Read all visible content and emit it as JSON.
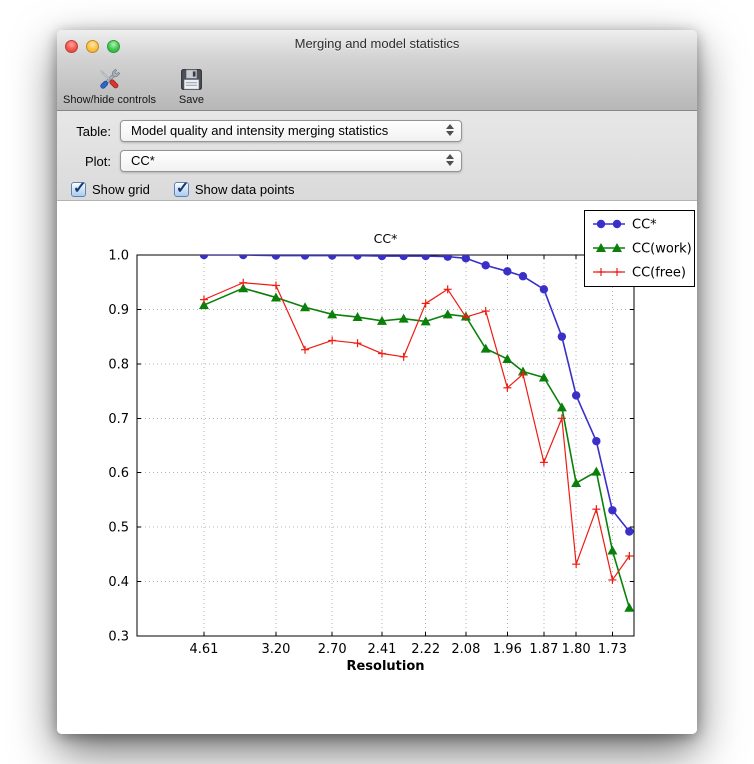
{
  "window": {
    "title": "Merging and model statistics",
    "toolbar": {
      "items": [
        {
          "label": "Show/hide controls",
          "icon": "tools-icon"
        },
        {
          "label": "Save",
          "icon": "save-icon"
        }
      ]
    },
    "controls": {
      "table": {
        "label": "Table:",
        "value": "Model quality and intensity merging statistics"
      },
      "plot": {
        "label": "Plot:",
        "value": "CC*"
      },
      "show_grid": {
        "label": "Show grid",
        "checked": true
      },
      "show_data_points": {
        "label": "Show data points",
        "checked": true
      }
    }
  },
  "chart_data": {
    "type": "line",
    "title": "CC*",
    "xlabel": "Resolution",
    "ylabel": "",
    "grid": true,
    "legend_position": "upper right",
    "ylim": [
      0.3,
      1.0
    ],
    "ytick_values": [
      1.0,
      0.9,
      0.8,
      0.7,
      0.6,
      0.5,
      0.4,
      0.3
    ],
    "ytick_labels": [
      "1.0",
      "0.9",
      "0.8",
      "0.7",
      "0.6",
      "0.5",
      "0.4",
      "0.3"
    ],
    "x_scale": "linear in 1/d^2 (resolution in Angstrom)",
    "x_resolution_angstrom": [
      4.61,
      3.66,
      3.2,
      2.91,
      2.7,
      2.54,
      2.41,
      2.31,
      2.22,
      2.14,
      2.08,
      2.02,
      1.96,
      1.92,
      1.87,
      1.83,
      1.8,
      1.76,
      1.73,
      1.7
    ],
    "xtick_bin_indices": [
      0,
      2,
      4,
      6,
      8,
      10,
      12,
      14,
      16,
      18
    ],
    "xtick_labels": [
      "4.61",
      "3.20",
      "2.70",
      "2.41",
      "2.22",
      "2.08",
      "1.96",
      "1.87",
      "1.80",
      "1.73"
    ],
    "series": [
      {
        "name": "CC*",
        "color": "#3a2fc9",
        "marker": "circle",
        "values": [
          1.0,
          1.0,
          0.999,
          0.999,
          0.999,
          0.999,
          0.998,
          0.998,
          0.998,
          0.997,
          0.994,
          0.981,
          0.97,
          0.961,
          0.937,
          0.85,
          0.742,
          0.658,
          0.531,
          0.492
        ]
      },
      {
        "name": "CC(work)",
        "color": "#0a800a",
        "marker": "triangle-up",
        "values": [
          0.908,
          0.939,
          0.922,
          0.904,
          0.891,
          0.886,
          0.879,
          0.883,
          0.878,
          0.891,
          0.887,
          0.828,
          0.809,
          0.786,
          0.775,
          0.72,
          0.581,
          0.602,
          0.457,
          0.352
        ]
      },
      {
        "name": "CC(free)",
        "color": "#ee1c12",
        "marker": "plus",
        "values": [
          0.918,
          0.949,
          0.944,
          0.826,
          0.843,
          0.838,
          0.819,
          0.813,
          0.911,
          0.937,
          0.886,
          0.897,
          0.756,
          0.781,
          0.619,
          0.7,
          0.432,
          0.533,
          0.403,
          0.447
        ]
      }
    ]
  }
}
